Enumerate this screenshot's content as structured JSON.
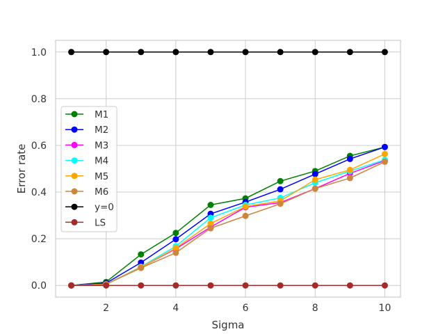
{
  "chart_data": {
    "type": "line",
    "xlabel": "Sigma",
    "ylabel": "Error rate",
    "xlim": [
      0.55,
      10.45
    ],
    "ylim": [
      -0.05,
      1.05
    ],
    "xticks": [
      2,
      4,
      6,
      8,
      10
    ],
    "xtick_labels": [
      "2",
      "4",
      "6",
      "8",
      "10"
    ],
    "yticks": [
      0.0,
      0.2,
      0.4,
      0.6,
      0.8,
      1.0
    ],
    "ytick_labels": [
      "0.0",
      "0.2",
      "0.4",
      "0.6",
      "0.8",
      "1.0"
    ],
    "grid": true,
    "legend_position": "center-left",
    "x": [
      1,
      2,
      3,
      4,
      5,
      6,
      7,
      8,
      9,
      10
    ],
    "series": [
      {
        "name": "M1",
        "color": "#008000",
        "values": [
          0.0,
          0.015,
          0.133,
          0.225,
          0.345,
          0.373,
          0.447,
          0.49,
          0.555,
          0.593
        ]
      },
      {
        "name": "M2",
        "color": "#0000ff",
        "values": [
          0.0,
          0.01,
          0.098,
          0.198,
          0.307,
          0.357,
          0.412,
          0.477,
          0.542,
          0.593
        ]
      },
      {
        "name": "M3",
        "color": "#ff00ff",
        "values": [
          0.0,
          0.005,
          0.078,
          0.157,
          0.25,
          0.335,
          0.355,
          0.415,
          0.48,
          0.535
        ]
      },
      {
        "name": "M4",
        "color": "#00ffff",
        "values": [
          0.0,
          0.005,
          0.08,
          0.168,
          0.29,
          0.345,
          0.375,
          0.44,
          0.49,
          0.538
        ]
      },
      {
        "name": "M5",
        "color": "#ffa500",
        "values": [
          0.0,
          0.005,
          0.078,
          0.16,
          0.265,
          0.338,
          0.362,
          0.453,
          0.495,
          0.563
        ]
      },
      {
        "name": "M6",
        "color": "#cd853f",
        "values": [
          0.0,
          0.005,
          0.075,
          0.14,
          0.245,
          0.298,
          0.35,
          0.415,
          0.46,
          0.53
        ]
      },
      {
        "name": "y=0",
        "color": "#000000",
        "values": [
          1.0,
          1.0,
          1.0,
          1.0,
          1.0,
          1.0,
          1.0,
          1.0,
          1.0,
          1.0
        ]
      },
      {
        "name": "LS",
        "color": "#a52a2a",
        "values": [
          0.0,
          0.0,
          0.0,
          0.0,
          0.0,
          0.0,
          0.0,
          0.0,
          0.0,
          0.0
        ]
      }
    ]
  }
}
